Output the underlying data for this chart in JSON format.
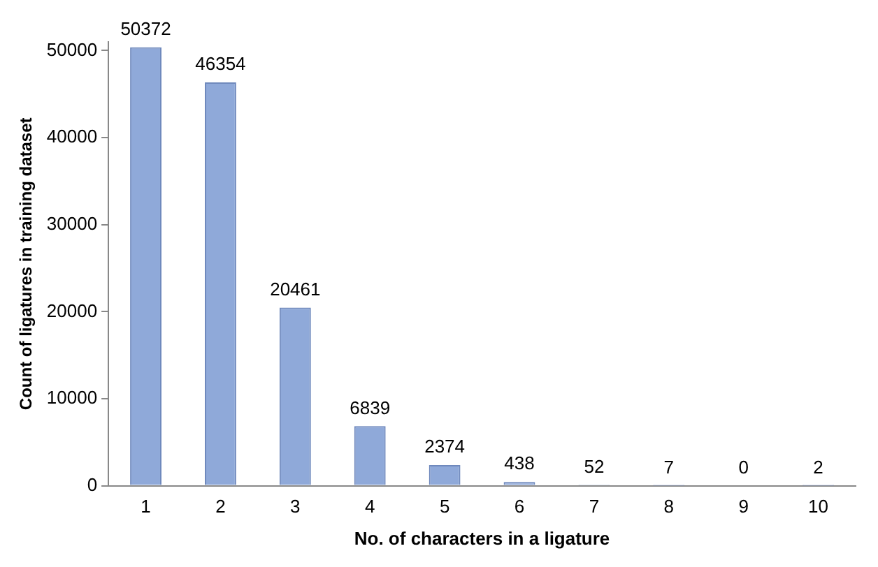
{
  "chart_data": {
    "type": "bar",
    "xlabel": "No. of characters in a ligature",
    "ylabel": "Count of ligatures in training dataset",
    "categories": [
      "1",
      "2",
      "3",
      "4",
      "5",
      "6",
      "7",
      "8",
      "9",
      "10"
    ],
    "values": [
      50372,
      46354,
      20461,
      6839,
      2374,
      438,
      52,
      7,
      0,
      2
    ],
    "color": "#8fa9d9",
    "ylim": [
      0,
      51000
    ],
    "yticks": [
      0,
      10000,
      20000,
      30000,
      40000,
      50000
    ],
    "grid": false,
    "legend": false,
    "data_labels": true
  }
}
